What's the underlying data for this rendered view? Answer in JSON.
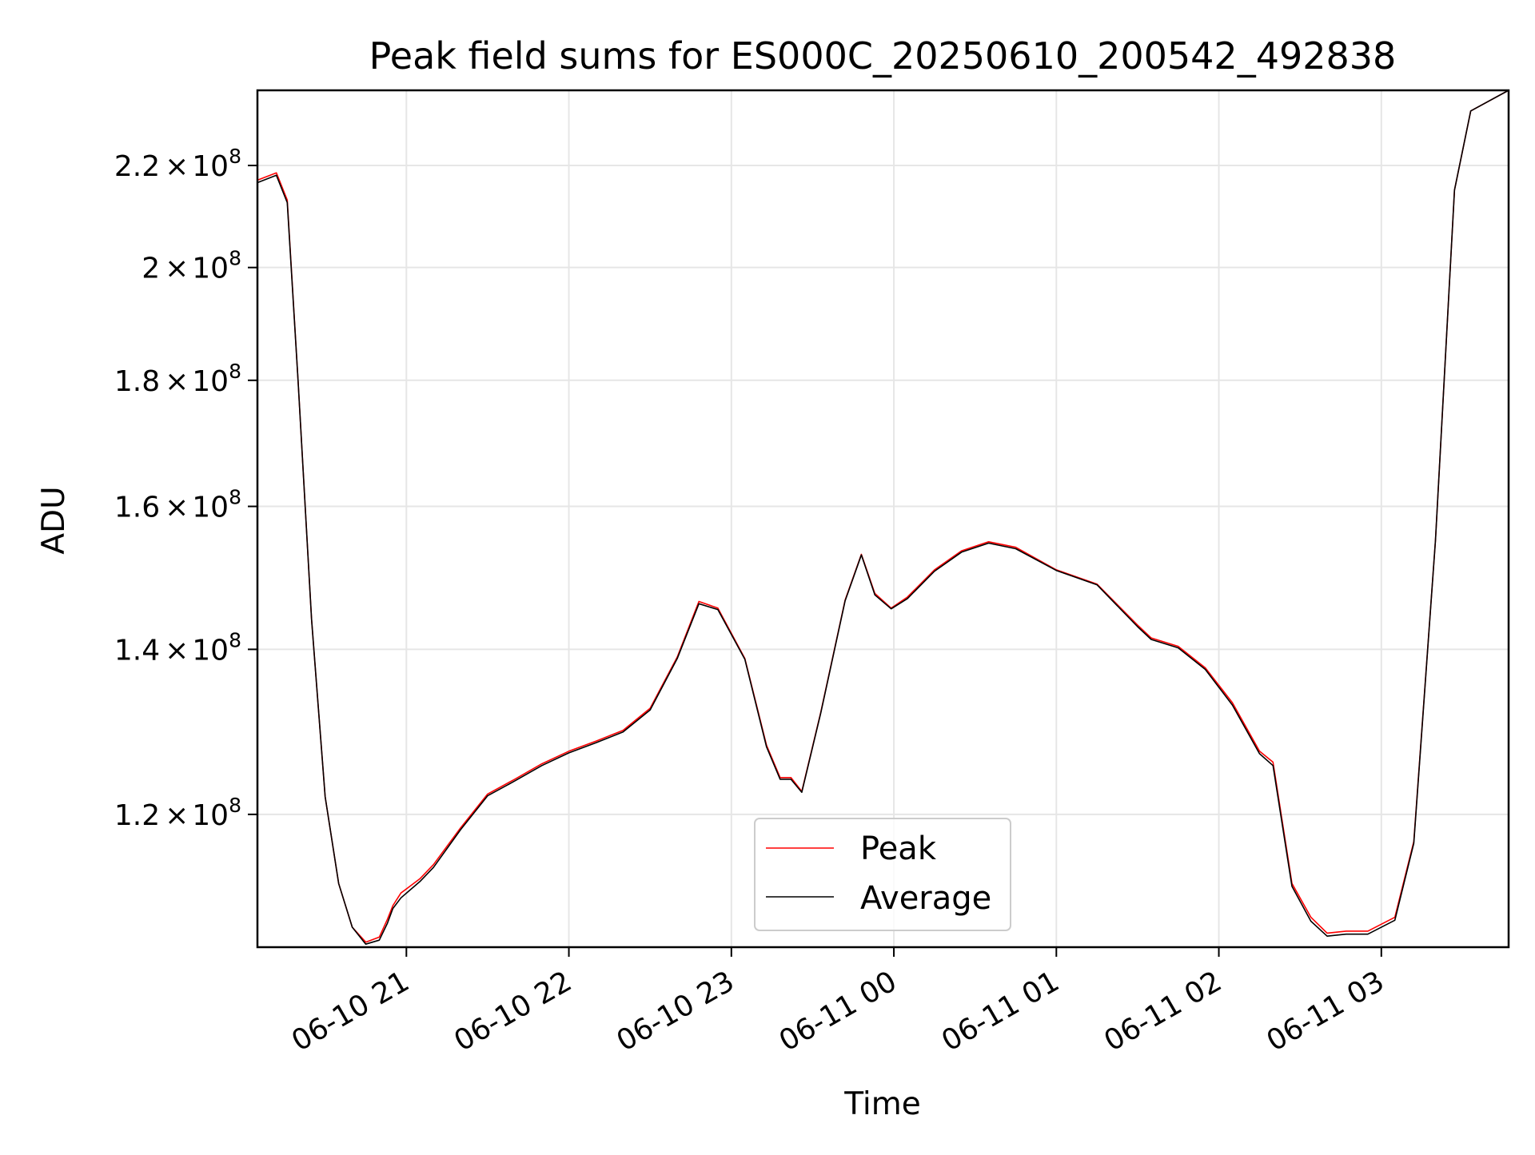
{
  "chart_data": {
    "type": "line",
    "title": "Peak field sums for ES000C_20250610_200542_492838",
    "xlabel": "Time",
    "ylabel": "ADU",
    "y_scale": "log",
    "ylim": [
      106000000,
      236000000
    ],
    "xlim": [
      "2025-06-10 20:05",
      "2025-06-11 03:47"
    ],
    "grid": true,
    "legend_position": "lower-center",
    "x_ticks": [
      {
        "label": "06-10 21",
        "time": "2025-06-10 21:00"
      },
      {
        "label": "06-10 22",
        "time": "2025-06-10 22:00"
      },
      {
        "label": "06-10 23",
        "time": "2025-06-10 23:00"
      },
      {
        "label": "06-11 00",
        "time": "2025-06-11 00:00"
      },
      {
        "label": "06-11 01",
        "time": "2025-06-11 01:00"
      },
      {
        "label": "06-11 02",
        "time": "2025-06-11 02:00"
      },
      {
        "label": "06-11 03",
        "time": "2025-06-11 03:00"
      }
    ],
    "y_ticks": [
      {
        "mantissa": "1.2",
        "times": "×",
        "base": "10",
        "exp": "8",
        "value": 120000000
      },
      {
        "mantissa": "1.4",
        "times": "×",
        "base": "10",
        "exp": "8",
        "value": 140000000
      },
      {
        "mantissa": "1.6",
        "times": "×",
        "base": "10",
        "exp": "8",
        "value": 160000000
      },
      {
        "mantissa": "1.8",
        "times": "×",
        "base": "10",
        "exp": "8",
        "value": 180000000
      },
      {
        "mantissa": "2",
        "times": "×",
        "base": "10",
        "exp": "8",
        "value": 200000000
      },
      {
        "mantissa": "2.2",
        "times": "×",
        "base": "10",
        "exp": "8",
        "value": 220000000
      }
    ],
    "series": [
      {
        "name": "Peak",
        "color": "#ff0000",
        "x": [
          "2025-06-10 20:05",
          "2025-06-10 20:12",
          "2025-06-10 20:16",
          "2025-06-10 20:20",
          "2025-06-10 20:25",
          "2025-06-10 20:30",
          "2025-06-10 20:35",
          "2025-06-10 20:40",
          "2025-06-10 20:45",
          "2025-06-10 20:50",
          "2025-06-10 20:53",
          "2025-06-10 20:55",
          "2025-06-10 20:58",
          "2025-06-10 21:05",
          "2025-06-10 21:10",
          "2025-06-10 21:20",
          "2025-06-10 21:30",
          "2025-06-10 21:40",
          "2025-06-10 21:50",
          "2025-06-10 22:00",
          "2025-06-10 22:10",
          "2025-06-10 22:20",
          "2025-06-10 22:30",
          "2025-06-10 22:40",
          "2025-06-10 22:48",
          "2025-06-10 22:55",
          "2025-06-10 23:05",
          "2025-06-10 23:13",
          "2025-06-10 23:18",
          "2025-06-10 23:22",
          "2025-06-10 23:26",
          "2025-06-10 23:33",
          "2025-06-10 23:42",
          "2025-06-10 23:48",
          "2025-06-10 23:53",
          "2025-06-10 23:59",
          "2025-06-11 00:05",
          "2025-06-11 00:15",
          "2025-06-11 00:25",
          "2025-06-11 00:35",
          "2025-06-11 00:45",
          "2025-06-11 01:00",
          "2025-06-11 01:15",
          "2025-06-11 01:30",
          "2025-06-11 01:35",
          "2025-06-11 01:45",
          "2025-06-11 01:55",
          "2025-06-11 02:05",
          "2025-06-11 02:15",
          "2025-06-11 02:20",
          "2025-06-11 02:27",
          "2025-06-11 02:34",
          "2025-06-11 02:40",
          "2025-06-11 02:47",
          "2025-06-11 02:55",
          "2025-06-11 03:05",
          "2025-06-11 03:12",
          "2025-06-11 03:20",
          "2025-06-11 03:27",
          "2025-06-11 03:33",
          "2025-06-11 03:47"
        ],
        "y": [
          217000000,
          218500000,
          213000000,
          180000000,
          144000000,
          122000000,
          112500000,
          108000000,
          106500000,
          107000000,
          108800000,
          110200000,
          111500000,
          113000000,
          114500000,
          118500000,
          122300000,
          124000000,
          125800000,
          127300000,
          128500000,
          129800000,
          132500000,
          139000000,
          146400000,
          145500000,
          138800000,
          128000000,
          124200000,
          124200000,
          122600000,
          132000000,
          146600000,
          153000000,
          147500000,
          145500000,
          147000000,
          150800000,
          153500000,
          154800000,
          154000000,
          150800000,
          148800000,
          143200000,
          141500000,
          140400000,
          137600000,
          133200000,
          127300000,
          126000000,
          112500000,
          109000000,
          107400000,
          107600000,
          107600000,
          109000000,
          117000000,
          155000000,
          215000000,
          231500000,
          236000000
        ]
      },
      {
        "name": "Average",
        "color": "#000000",
        "x": [
          "2025-06-10 20:05",
          "2025-06-10 20:12",
          "2025-06-10 20:16",
          "2025-06-10 20:20",
          "2025-06-10 20:25",
          "2025-06-10 20:30",
          "2025-06-10 20:35",
          "2025-06-10 20:40",
          "2025-06-10 20:45",
          "2025-06-10 20:50",
          "2025-06-10 20:53",
          "2025-06-10 20:55",
          "2025-06-10 20:58",
          "2025-06-10 21:05",
          "2025-06-10 21:10",
          "2025-06-10 21:20",
          "2025-06-10 21:30",
          "2025-06-10 21:40",
          "2025-06-10 21:50",
          "2025-06-10 22:00",
          "2025-06-10 22:10",
          "2025-06-10 22:20",
          "2025-06-10 22:30",
          "2025-06-10 22:40",
          "2025-06-10 22:48",
          "2025-06-10 22:55",
          "2025-06-10 23:05",
          "2025-06-10 23:13",
          "2025-06-10 23:18",
          "2025-06-10 23:22",
          "2025-06-10 23:26",
          "2025-06-10 23:33",
          "2025-06-10 23:42",
          "2025-06-10 23:48",
          "2025-06-10 23:53",
          "2025-06-10 23:59",
          "2025-06-11 00:05",
          "2025-06-11 00:15",
          "2025-06-11 00:25",
          "2025-06-11 00:35",
          "2025-06-11 00:45",
          "2025-06-11 01:00",
          "2025-06-11 01:15",
          "2025-06-11 01:30",
          "2025-06-11 01:35",
          "2025-06-11 01:45",
          "2025-06-11 01:55",
          "2025-06-11 02:05",
          "2025-06-11 02:15",
          "2025-06-11 02:20",
          "2025-06-11 02:27",
          "2025-06-11 02:34",
          "2025-06-11 02:40",
          "2025-06-11 02:47",
          "2025-06-11 02:55",
          "2025-06-11 03:05",
          "2025-06-11 03:12",
          "2025-06-11 03:20",
          "2025-06-11 03:27",
          "2025-06-11 03:33",
          "2025-06-11 03:47"
        ],
        "y": [
          216500000,
          218000000,
          212500000,
          180000000,
          144000000,
          122000000,
          112500000,
          108000000,
          106300000,
          106700000,
          108400000,
          109900000,
          111000000,
          112700000,
          114200000,
          118300000,
          122100000,
          123800000,
          125600000,
          127100000,
          128300000,
          129600000,
          132300000,
          138800000,
          146100000,
          145300000,
          138700000,
          127800000,
          124000000,
          124000000,
          122500000,
          131900000,
          146500000,
          152900000,
          147300000,
          145400000,
          146800000,
          150600000,
          153300000,
          154600000,
          153800000,
          150700000,
          148700000,
          143000000,
          141300000,
          140200000,
          137400000,
          132900000,
          127000000,
          125600000,
          112200000,
          108600000,
          107100000,
          107300000,
          107300000,
          108700000,
          116800000,
          155000000,
          215000000,
          231500000,
          236000000
        ]
      }
    ]
  },
  "legend": {
    "peak_label": "Peak",
    "average_label": "Average"
  }
}
